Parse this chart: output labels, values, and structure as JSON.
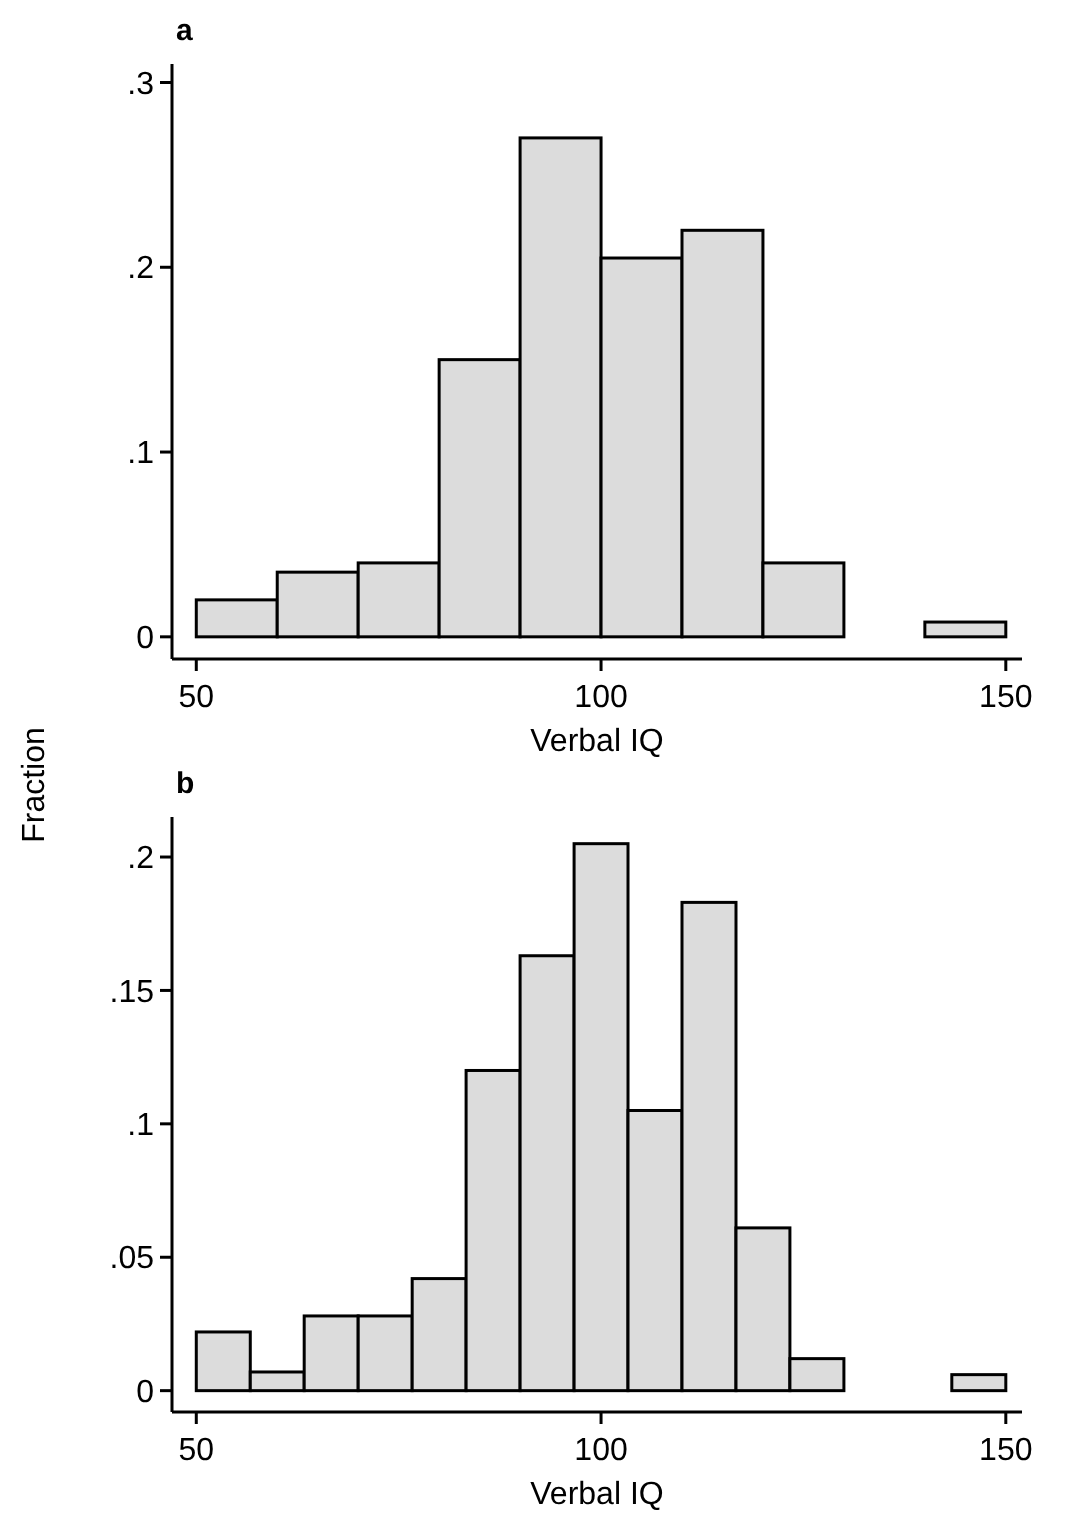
{
  "chart_data": [
    {
      "type": "histogram",
      "title": "a",
      "xlabel": "Verbal IQ",
      "ylabel": "Fraction",
      "color": "#dcdcdc",
      "bins": [
        50,
        60,
        70,
        80,
        90,
        100,
        110,
        120,
        130,
        140,
        150
      ],
      "values": [
        0.02,
        0.035,
        0.04,
        0.15,
        0.27,
        0.205,
        0.22,
        0.04,
        0,
        0.008
      ],
      "xlim": [
        47,
        152
      ],
      "xticks": [
        50,
        100,
        150
      ],
      "ylim": [
        -0.012,
        0.31
      ],
      "yticks": [
        0,
        {
          "value": 0.1,
          "label": ".1"
        },
        {
          "value": 0.2,
          "label": ".2"
        },
        {
          "value": 0.3,
          "label": ".3"
        }
      ],
      "grid": false
    },
    {
      "type": "histogram",
      "title": "b",
      "xlabel": "Verbal IQ",
      "color": "#dcdcdc",
      "bins": [
        50,
        56.67,
        63.33,
        70,
        76.67,
        83.33,
        90,
        96.67,
        103.33,
        110,
        116.67,
        123.33,
        130,
        136.67,
        143.33,
        150
      ],
      "values": [
        0.022,
        0.007,
        0.028,
        0.028,
        0.042,
        0.12,
        0.163,
        0.205,
        0.105,
        0.183,
        0.061,
        0.012,
        0,
        0,
        0.006
      ],
      "xlim": [
        47,
        152
      ],
      "xticks": [
        50,
        100,
        150
      ],
      "ylim": [
        -0.008,
        0.215
      ],
      "yticks": [
        0,
        {
          "value": 0.05,
          "label": ".05"
        },
        {
          "value": 0.1,
          "label": ".1"
        },
        {
          "value": 0.15,
          "label": ".15"
        },
        {
          "value": 0.2,
          "label": ".2"
        }
      ],
      "grid": false
    }
  ]
}
